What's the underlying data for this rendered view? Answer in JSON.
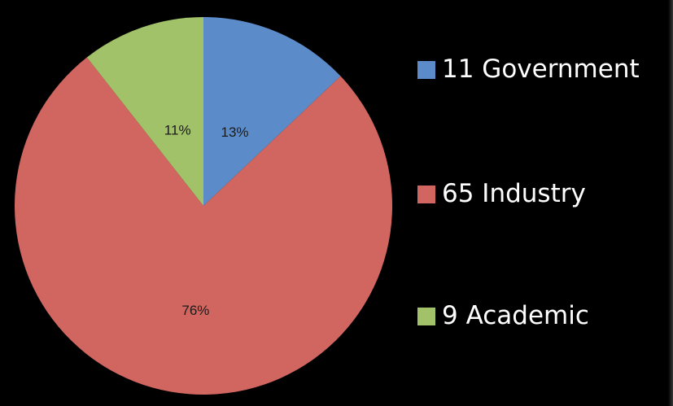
{
  "chart_data": {
    "type": "pie",
    "categories": [
      "11 Government",
      "65 Industry",
      "9 Academic"
    ],
    "values": [
      11,
      65,
      9
    ],
    "percent_labels": [
      "13%",
      "76%",
      "11%"
    ],
    "colors": [
      "#5B8CC9",
      "#D16660",
      "#A2C26A"
    ],
    "legend_position": "right",
    "title": ""
  },
  "legend": {
    "items": [
      {
        "label": "11 Government",
        "color": "#5B8CC9"
      },
      {
        "label": "65 Industry",
        "color": "#D16660"
      },
      {
        "label": "9 Academic",
        "color": "#A2C26A"
      }
    ]
  },
  "background_color": "#000000"
}
